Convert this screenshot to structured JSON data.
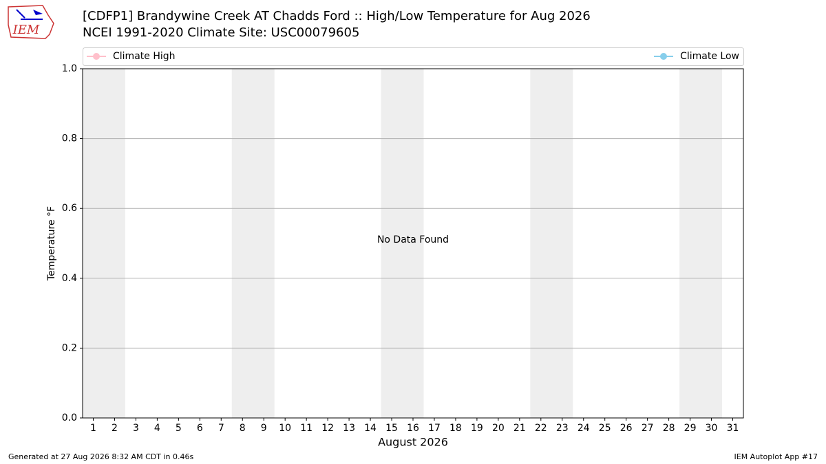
{
  "logo_text": "IEM",
  "chart_data": {
    "type": "line",
    "title": "[CDFP1] Brandywine Creek  AT Chadds Ford :: High/Low Temperature for Aug 2026",
    "subtitle": "NCEI 1991-2020 Climate Site: USC00079605",
    "x_label": "August 2026",
    "y_label": "Temperature °F",
    "annotation": "No Data Found",
    "x": [
      1,
      2,
      3,
      4,
      5,
      6,
      7,
      8,
      9,
      10,
      11,
      12,
      13,
      14,
      15,
      16,
      17,
      18,
      19,
      20,
      21,
      22,
      23,
      24,
      25,
      26,
      27,
      28,
      29,
      30,
      31
    ],
    "series": [
      {
        "name": "Climate High",
        "color": "#ffc0cb",
        "values": [
          null,
          null,
          null,
          null,
          null,
          null,
          null,
          null,
          null,
          null,
          null,
          null,
          null,
          null,
          null,
          null,
          null,
          null,
          null,
          null,
          null,
          null,
          null,
          null,
          null,
          null,
          null,
          null,
          null,
          null,
          null
        ]
      },
      {
        "name": "Climate Low",
        "color": "#87ceeb",
        "values": [
          null,
          null,
          null,
          null,
          null,
          null,
          null,
          null,
          null,
          null,
          null,
          null,
          null,
          null,
          null,
          null,
          null,
          null,
          null,
          null,
          null,
          null,
          null,
          null,
          null,
          null,
          null,
          null,
          null,
          null,
          null
        ]
      }
    ],
    "x_bands": [
      [
        0.5,
        2.5
      ],
      [
        7.5,
        9.5
      ],
      [
        14.5,
        16.5
      ],
      [
        21.5,
        23.5
      ],
      [
        28.5,
        30.5
      ]
    ],
    "band_color": "#eeeeee",
    "xlim": [
      0.5,
      31.5
    ],
    "xticks": [
      1,
      2,
      3,
      4,
      5,
      6,
      7,
      8,
      9,
      10,
      11,
      12,
      13,
      14,
      15,
      16,
      17,
      18,
      19,
      20,
      21,
      22,
      23,
      24,
      25,
      26,
      27,
      28,
      29,
      30,
      31
    ],
    "ylim": [
      0,
      1
    ],
    "yticks": [
      {
        "value": 0,
        "label": "0.0"
      },
      {
        "value": 0.2,
        "label": "0.2"
      },
      {
        "value": 0.4,
        "label": "0.4"
      },
      {
        "value": 0.6,
        "label": "0.6"
      },
      {
        "value": 0.8,
        "label": "0.8"
      },
      {
        "value": 1,
        "label": "1.0"
      }
    ],
    "grid": true
  },
  "footer": {
    "left": "Generated at 27 Aug 2026 8:32 AM CDT in 0.46s",
    "right": "IEM Autoplot App #17"
  }
}
